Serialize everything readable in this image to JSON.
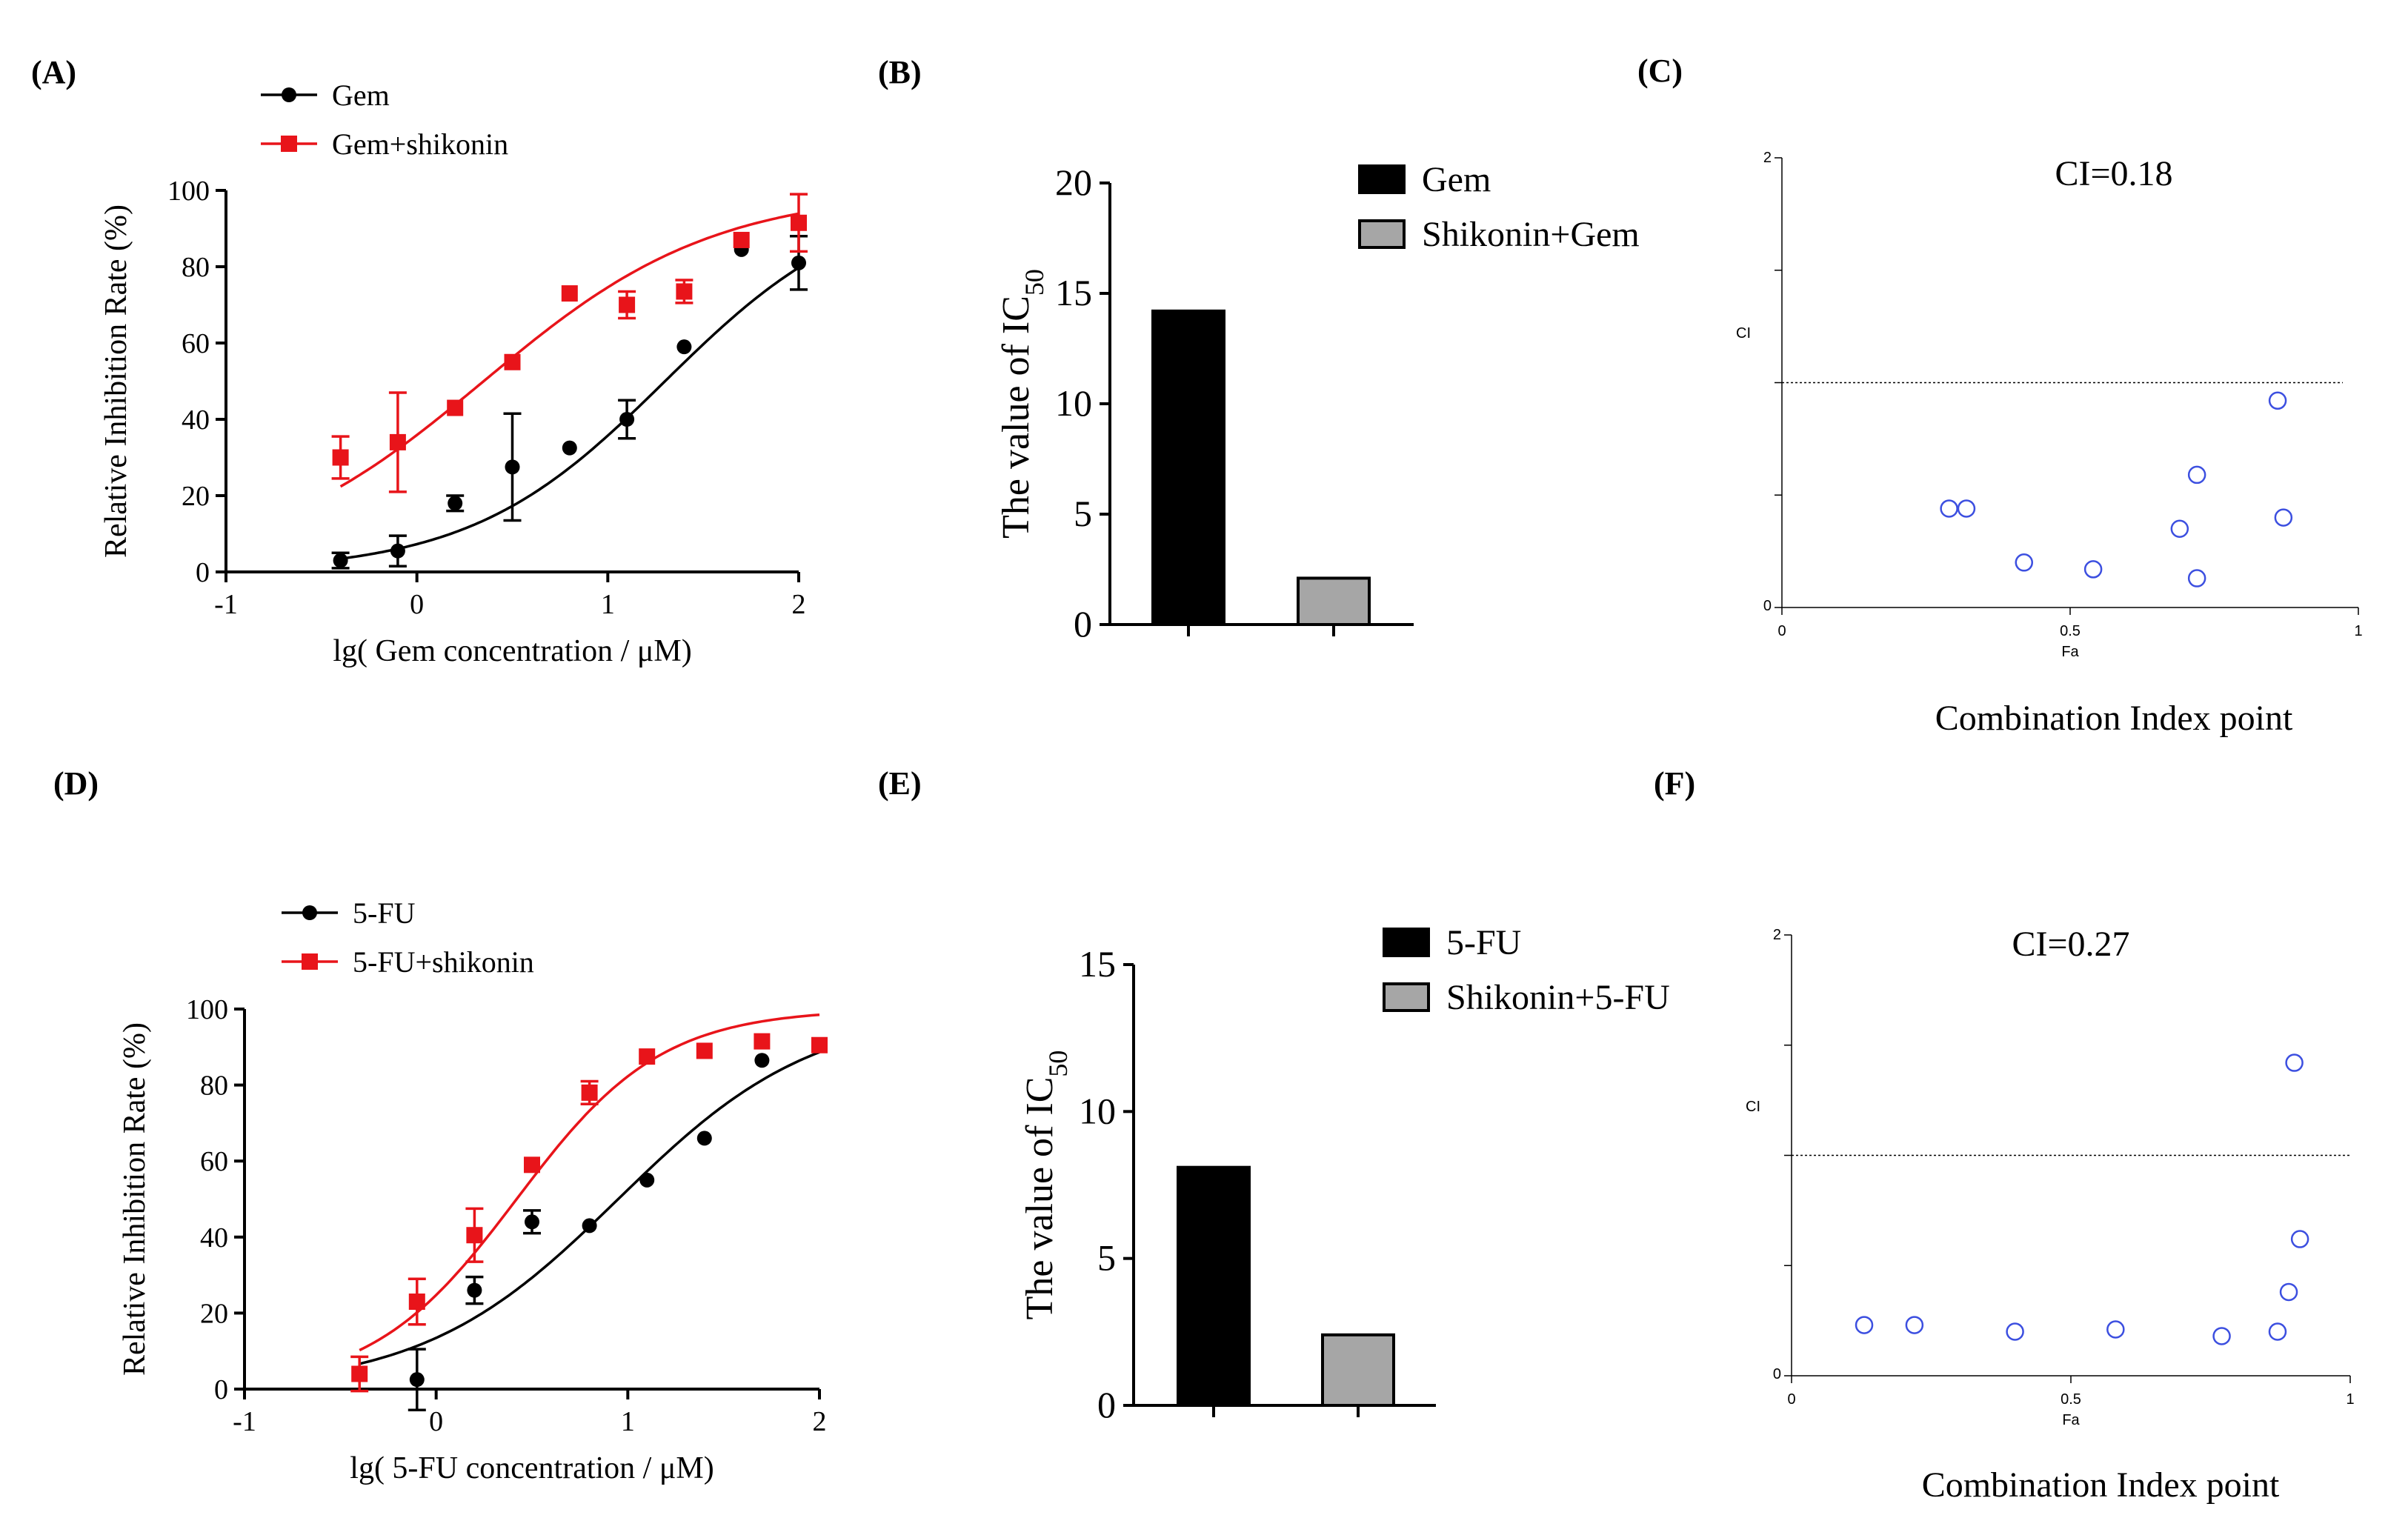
{
  "colors": {
    "series_black": "#000000",
    "series_red": "#e8141a",
    "bar_gray": "#a6a6a6",
    "ci_point": "#3c4fe0"
  },
  "chart_data": [
    {
      "panel": "(A)",
      "type": "scatter",
      "title": "",
      "xlabel": "lg( Gem concentration / μM)",
      "ylabel": "Relative Inhibition Rate (%)",
      "xlim": [
        -1,
        2
      ],
      "ylim": [
        0,
        100
      ],
      "xticks": [
        "-1",
        "0",
        "1",
        "2"
      ],
      "yticks": [
        "0",
        "20",
        "40",
        "60",
        "80",
        "100"
      ],
      "legend_position": "top-left",
      "series": [
        {
          "name": "Gem",
          "color": "#000000",
          "marker": "circle",
          "x": [
            -0.4,
            -0.1,
            0.2,
            0.5,
            0.8,
            1.1,
            1.4,
            1.7,
            2.0
          ],
          "y": [
            3,
            5.5,
            18,
            27.5,
            32.5,
            40,
            59,
            84.5,
            81
          ],
          "err": [
            2,
            4,
            2,
            14,
            0,
            5,
            0,
            0,
            7
          ],
          "fit": {
            "bottom": 0,
            "top": 100,
            "logEC50": 1.3,
            "hill": 0.85
          }
        },
        {
          "name": "Gem+shikonin",
          "color": "#e8141a",
          "marker": "square",
          "x": [
            -0.4,
            -0.1,
            0.2,
            0.5,
            0.8,
            1.1,
            1.4,
            1.7,
            2.0
          ],
          "y": [
            30,
            34,
            43,
            55,
            73,
            70,
            73.5,
            87,
            91.5
          ],
          "err": [
            5.5,
            13,
            0,
            0,
            0,
            3.5,
            3,
            0,
            7.5
          ],
          "fit": {
            "bottom": 0,
            "top": 100,
            "logEC50": 0.35,
            "hill": 0.72
          }
        }
      ],
      "legend_labels": [
        "Gem",
        "Gem+shikonin"
      ]
    },
    {
      "panel": "(B)",
      "type": "bar",
      "ylabel_main": "The value of IC",
      "ylabel_sub": "50",
      "categories": [
        "Gem",
        "Shikonin+Gem"
      ],
      "values": [
        14.2,
        2.1
      ],
      "ylim": [
        0,
        20
      ],
      "yticks": [
        "0",
        "5",
        "10",
        "15",
        "20"
      ],
      "legend_position": "top-right"
    },
    {
      "panel": "(C)",
      "type": "scatter",
      "annotation": "CI=0.18",
      "caption": "Combination Index point",
      "xlabel": "Fa",
      "ylabel": "CI",
      "xlim": [
        0,
        1
      ],
      "ylim": [
        0,
        2
      ],
      "xticks": [
        "0",
        "0.5",
        "1"
      ],
      "yticks": [
        "0",
        "2"
      ],
      "reference_line": 1,
      "fa": [
        0.29,
        0.32,
        0.42,
        0.54,
        0.69,
        0.72,
        0.72,
        0.86,
        0.87
      ],
      "ci": [
        0.44,
        0.44,
        0.2,
        0.17,
        0.35,
        0.59,
        0.13,
        0.92,
        0.4
      ]
    },
    {
      "panel": "(D)",
      "type": "scatter",
      "title": "",
      "xlabel": "lg( 5-FU concentration / μM)",
      "ylabel": "Relative Inhibition Rate (%)",
      "xlim": [
        -1,
        2
      ],
      "ylim": [
        0,
        100
      ],
      "xticks": [
        "-1",
        "0",
        "1",
        "2"
      ],
      "yticks": [
        "0",
        "20",
        "40",
        "60",
        "80",
        "100"
      ],
      "legend_position": "top-left",
      "series": [
        {
          "name": "5-FU",
          "color": "#000000",
          "marker": "circle",
          "x": [
            -0.1,
            0.2,
            0.5,
            0.8,
            1.1,
            1.4,
            1.7,
            2.0
          ],
          "y": [
            2.5,
            26,
            44,
            43,
            55,
            66,
            86.5,
            90.5
          ],
          "err": [
            8,
            3.5,
            3,
            0,
            0,
            0,
            0,
            0
          ],
          "fit": {
            "bottom": 0,
            "top": 100,
            "logEC50": 0.95,
            "hill": 0.85
          }
        },
        {
          "name": "5-FU+shikonin",
          "color": "#e8141a",
          "marker": "square",
          "x": [
            -0.4,
            -0.1,
            0.2,
            0.5,
            0.8,
            1.1,
            1.4,
            1.7,
            2.0
          ],
          "y": [
            4,
            23,
            40.5,
            59,
            78,
            87.5,
            89,
            91.5,
            90.5
          ],
          "err": [
            4.5,
            6,
            7,
            0,
            3,
            0,
            0,
            0,
            0
          ],
          "fit": {
            "bottom": 0,
            "top": 100,
            "logEC50": 0.42,
            "hill": 1.15
          }
        }
      ],
      "legend_labels": [
        "5-FU",
        "5-FU+shikonin"
      ]
    },
    {
      "panel": "(E)",
      "type": "bar",
      "ylabel_main": "The value of IC",
      "ylabel_sub": "50",
      "categories": [
        "5-FU",
        "Shikonin+5-FU"
      ],
      "values": [
        8.1,
        2.4
      ],
      "ylim": [
        0,
        15
      ],
      "yticks": [
        "0",
        "5",
        "10",
        "15"
      ],
      "legend_position": "top-right"
    },
    {
      "panel": "(F)",
      "type": "scatter",
      "annotation": "CI=0.27",
      "caption": "Combination Index point",
      "xlabel": "Fa",
      "ylabel": "CI",
      "xlim": [
        0,
        1
      ],
      "ylim": [
        0,
        2
      ],
      "xticks": [
        "0",
        "0.5",
        "1"
      ],
      "yticks": [
        "0",
        "2"
      ],
      "reference_line": 1,
      "fa": [
        0.13,
        0.22,
        0.4,
        0.58,
        0.77,
        0.87,
        0.89,
        0.91,
        0.9
      ],
      "ci": [
        0.23,
        0.23,
        0.2,
        0.21,
        0.18,
        0.2,
        0.38,
        0.62,
        1.42
      ]
    }
  ]
}
